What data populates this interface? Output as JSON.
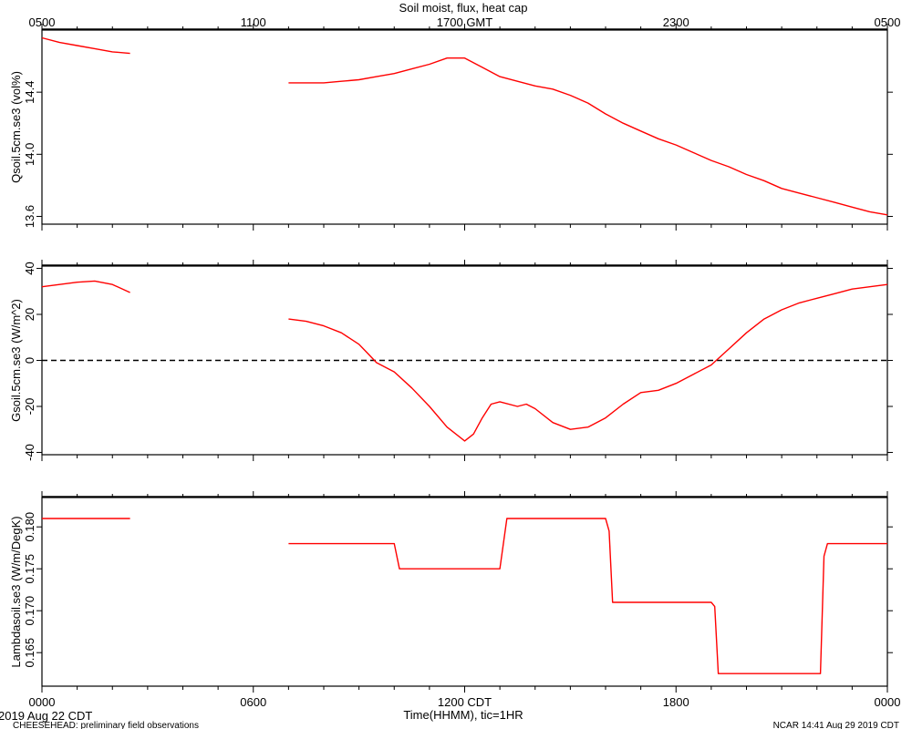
{
  "page": {
    "top_title": "Soil moist, flux, heat cap",
    "footer_left_date": "2019 Aug 22 CDT",
    "footer_left_note": "CHEESEHEAD: preliminary field observations",
    "footer_right_note": "NCAR 14:41 Aug 29 2019 CDT",
    "xlabel": "Time(HHMM), tic=1HR"
  },
  "colors": {
    "series": "#ff0000",
    "axis": "#000000",
    "zero_line": "#000000"
  },
  "chart_data": [
    {
      "type": "line",
      "title": "Soil moist, flux, heat cap",
      "ylabel": "Qsoil.5cm.se3 (vol%)",
      "xlabel": "",
      "xlim": [
        0,
        24
      ],
      "ylim": [
        13.55,
        14.8
      ],
      "yticks": [
        13.6,
        14.0,
        14.4
      ],
      "ytick_labels": [
        "13.6",
        "14.0",
        "14.4"
      ],
      "top_xticks": [
        0,
        6,
        12,
        18,
        24
      ],
      "top_xtick_labels": [
        "0500",
        "1100",
        "1700 GMT",
        "2300",
        "0500"
      ],
      "grid": false,
      "series": [
        {
          "segments": [
            [
              [
                0,
                14.75
              ],
              [
                0.5,
                14.72
              ],
              [
                1.0,
                14.7
              ],
              [
                1.5,
                14.68
              ],
              [
                2.0,
                14.66
              ],
              [
                2.5,
                14.65
              ]
            ],
            [
              [
                7.0,
                14.46
              ],
              [
                7.5,
                14.46
              ],
              [
                8.0,
                14.46
              ],
              [
                8.5,
                14.47
              ],
              [
                9.0,
                14.48
              ],
              [
                9.5,
                14.5
              ],
              [
                10.0,
                14.52
              ],
              [
                10.5,
                14.55
              ],
              [
                11.0,
                14.58
              ],
              [
                11.5,
                14.62
              ],
              [
                12.0,
                14.62
              ],
              [
                12.5,
                14.56
              ],
              [
                13.0,
                14.5
              ],
              [
                13.5,
                14.47
              ],
              [
                14.0,
                14.44
              ],
              [
                14.5,
                14.42
              ],
              [
                15.0,
                14.38
              ],
              [
                15.5,
                14.33
              ],
              [
                16.0,
                14.26
              ],
              [
                16.5,
                14.2
              ],
              [
                17.0,
                14.15
              ],
              [
                17.5,
                14.1
              ],
              [
                18.0,
                14.06
              ],
              [
                18.5,
                14.01
              ],
              [
                19.0,
                13.96
              ],
              [
                19.5,
                13.92
              ],
              [
                20.0,
                13.87
              ],
              [
                20.5,
                13.83
              ],
              [
                21.0,
                13.78
              ],
              [
                21.5,
                13.75
              ],
              [
                22.0,
                13.72
              ],
              [
                22.5,
                13.69
              ],
              [
                23.0,
                13.66
              ],
              [
                23.5,
                13.63
              ],
              [
                24.0,
                13.61
              ]
            ]
          ]
        }
      ]
    },
    {
      "type": "line",
      "ylabel": "Gsoil.5cm.se3 (W/m^2)",
      "xlabel": "",
      "xlim": [
        0,
        24
      ],
      "ylim": [
        -41,
        41
      ],
      "yticks": [
        -40,
        -20,
        0,
        20,
        40
      ],
      "ytick_labels": [
        "-40",
        "-20",
        "0",
        "20",
        "40"
      ],
      "zero_line": 0,
      "grid": false,
      "series": [
        {
          "segments": [
            [
              [
                0,
                32
              ],
              [
                0.5,
                33
              ],
              [
                1.0,
                34
              ],
              [
                1.5,
                34.5
              ],
              [
                2.0,
                33
              ],
              [
                2.5,
                29.5
              ]
            ],
            [
              [
                7.0,
                18
              ],
              [
                7.5,
                17
              ],
              [
                8.0,
                15
              ],
              [
                8.5,
                12
              ],
              [
                9.0,
                7
              ],
              [
                9.25,
                3
              ],
              [
                9.5,
                -1
              ],
              [
                10.0,
                -5
              ],
              [
                10.5,
                -12
              ],
              [
                11.0,
                -20
              ],
              [
                11.5,
                -29
              ],
              [
                12.0,
                -35
              ],
              [
                12.25,
                -32
              ],
              [
                12.5,
                -25
              ],
              [
                12.75,
                -19
              ],
              [
                13.0,
                -18
              ],
              [
                13.5,
                -20
              ],
              [
                13.75,
                -19
              ],
              [
                14.0,
                -21
              ],
              [
                14.5,
                -27
              ],
              [
                15.0,
                -30
              ],
              [
                15.5,
                -29
              ],
              [
                16.0,
                -25
              ],
              [
                16.5,
                -19
              ],
              [
                17.0,
                -14
              ],
              [
                17.5,
                -13
              ],
              [
                18.0,
                -10
              ],
              [
                18.5,
                -6
              ],
              [
                19.0,
                -2
              ],
              [
                19.5,
                5
              ],
              [
                20.0,
                12
              ],
              [
                20.5,
                18
              ],
              [
                21.0,
                22
              ],
              [
                21.5,
                25
              ],
              [
                22.0,
                27
              ],
              [
                22.5,
                29
              ],
              [
                23.0,
                31
              ],
              [
                23.5,
                32
              ],
              [
                24.0,
                33
              ]
            ]
          ]
        }
      ]
    },
    {
      "type": "line",
      "ylabel": "Lambdasoil.se3 (W/m/DegK)",
      "xlabel": "Time(HHMM), tic=1HR",
      "xlim": [
        0,
        24
      ],
      "ylim": [
        0.161,
        0.1835
      ],
      "yticks": [
        0.165,
        0.17,
        0.175,
        0.18
      ],
      "ytick_labels": [
        "0.165",
        "0.170",
        "0.175",
        "0.180"
      ],
      "xticks": [
        0,
        6,
        12,
        18,
        24
      ],
      "xtick_labels": [
        "0000",
        "0600",
        "1200 CDT",
        "1800",
        "0000"
      ],
      "grid": false,
      "series": [
        {
          "segments": [
            [
              [
                0,
                0.181
              ],
              [
                2.5,
                0.181
              ]
            ],
            [
              [
                7.0,
                0.178
              ],
              [
                10.0,
                0.178
              ],
              [
                10.15,
                0.175
              ],
              [
                13.0,
                0.175
              ],
              [
                13.2,
                0.181
              ],
              [
                16.0,
                0.181
              ],
              [
                16.1,
                0.1795
              ],
              [
                16.2,
                0.171
              ],
              [
                19.0,
                0.171
              ],
              [
                19.1,
                0.1705
              ],
              [
                19.2,
                0.1625
              ],
              [
                22.1,
                0.1625
              ],
              [
                22.2,
                0.1765
              ],
              [
                22.3,
                0.178
              ],
              [
                24.0,
                0.178
              ]
            ]
          ]
        }
      ]
    }
  ]
}
